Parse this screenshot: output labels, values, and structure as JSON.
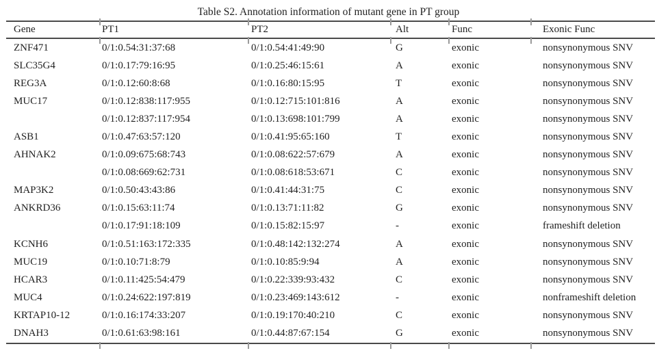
{
  "page": {
    "title": "Table S2. Annotation information of mutant gene in PT group"
  },
  "table": {
    "columns": [
      "Gene",
      "PT1",
      "PT2",
      "Alt",
      "Func",
      "Exonic Func"
    ],
    "rows": [
      {
        "gene": "ZNF471",
        "pt1": "0/1:0.54:31:37:68",
        "pt2": "0/1:0.54:41:49:90",
        "alt": "G",
        "func": "exonic",
        "exonic_func": "nonsynonymous SNV"
      },
      {
        "gene": "SLC35G4",
        "pt1": "0/1:0.17:79:16:95",
        "pt2": "0/1:0.25:46:15:61",
        "alt": "A",
        "func": "exonic",
        "exonic_func": "nonsynonymous SNV"
      },
      {
        "gene": "REG3A",
        "pt1": "0/1:0.12:60:8:68",
        "pt2": "0/1:0.16:80:15:95",
        "alt": "T",
        "func": "exonic",
        "exonic_func": "nonsynonymous SNV"
      },
      {
        "gene": "MUC17",
        "pt1": "0/1:0.12:838:117:955",
        "pt2": "0/1:0.12:715:101:816",
        "alt": "A",
        "func": "exonic",
        "exonic_func": "nonsynonymous SNV"
      },
      {
        "gene": "",
        "pt1": "0/1:0.12:837:117:954",
        "pt2": "0/1:0.13:698:101:799",
        "alt": "A",
        "func": "exonic",
        "exonic_func": "nonsynonymous SNV"
      },
      {
        "gene": "ASB1",
        "pt1": "0/1:0.47:63:57:120",
        "pt2": "0/1:0.41:95:65:160",
        "alt": "T",
        "func": "exonic",
        "exonic_func": "nonsynonymous SNV"
      },
      {
        "gene": "AHNAK2",
        "pt1": "0/1:0.09:675:68:743",
        "pt2": "0/1:0.08:622:57:679",
        "alt": "A",
        "func": "exonic",
        "exonic_func": "nonsynonymous SNV"
      },
      {
        "gene": "",
        "pt1": "0/1:0.08:669:62:731",
        "pt2": "0/1:0.08:618:53:671",
        "alt": "C",
        "func": "exonic",
        "exonic_func": "nonsynonymous SNV"
      },
      {
        "gene": "MAP3K2",
        "pt1": "0/1:0.50:43:43:86",
        "pt2": "0/1:0.41:44:31:75",
        "alt": "C",
        "func": "exonic",
        "exonic_func": "nonsynonymous SNV"
      },
      {
        "gene": "ANKRD36",
        "pt1": "0/1:0.15:63:11:74",
        "pt2": "0/1:0.13:71:11:82",
        "alt": "G",
        "func": "exonic",
        "exonic_func": "nonsynonymous SNV"
      },
      {
        "gene": "",
        "pt1": "0/1:0.17:91:18:109",
        "pt2": "0/1:0.15:82:15:97",
        "alt": "-",
        "func": "exonic",
        "exonic_func": "frameshift deletion"
      },
      {
        "gene": "KCNH6",
        "pt1": "0/1:0.51:163:172:335",
        "pt2": "0/1:0.48:142:132:274",
        "alt": "A",
        "func": "exonic",
        "exonic_func": "nonsynonymous SNV"
      },
      {
        "gene": "MUC19",
        "pt1": "0/1:0.10:71:8:79",
        "pt2": "0/1:0.10:85:9:94",
        "alt": "A",
        "func": "exonic",
        "exonic_func": "nonsynonymous SNV"
      },
      {
        "gene": "HCAR3",
        "pt1": "0/1:0.11:425:54:479",
        "pt2": "0/1:0.22:339:93:432",
        "alt": "C",
        "func": "exonic",
        "exonic_func": "nonsynonymous SNV"
      },
      {
        "gene": "MUC4",
        "pt1": "0/1:0.24:622:197:819",
        "pt2": "0/1:0.23:469:143:612",
        "alt": "-",
        "func": "exonic",
        "exonic_func": "nonframeshift deletion"
      },
      {
        "gene": "KRTAP10-12",
        "pt1": "0/1:0.16:174:33:207",
        "pt2": "0/1:0.19:170:40:210",
        "alt": "C",
        "func": "exonic",
        "exonic_func": "nonsynonymous SNV"
      },
      {
        "gene": "DNAH3",
        "pt1": "0/1:0.61:63:98:161",
        "pt2": "0/1:0.44:87:67:154",
        "alt": "G",
        "func": "exonic",
        "exonic_func": "nonsynonymous SNV"
      }
    ]
  },
  "colors": {
    "background": "#ffffff",
    "text": "#1f1f1f",
    "rule": "#4a4a4a",
    "tick": "#9a9a9a"
  }
}
